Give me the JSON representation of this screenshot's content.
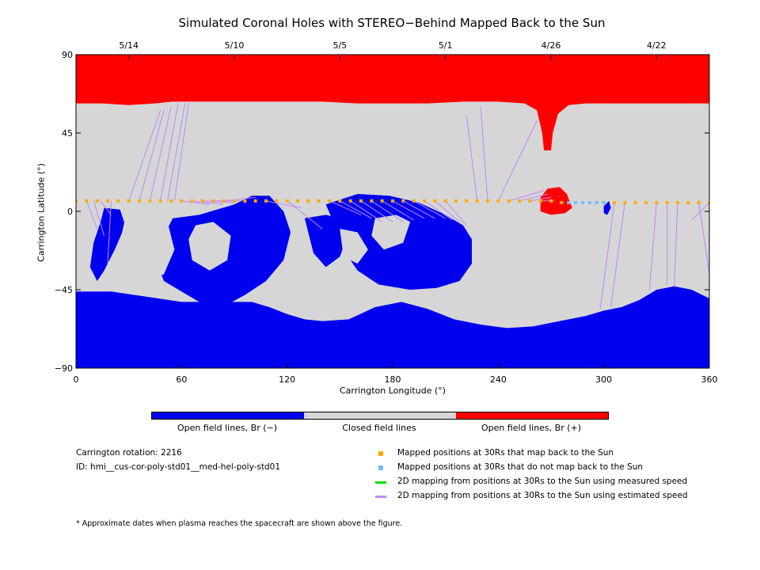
{
  "chart_data": {
    "type": "map",
    "title": "Simulated Coronal Holes with STEREO−Behind Mapped Back to the Sun",
    "xlabel": "Carrington Longitude (°)",
    "ylabel": "Carrington Latitude (°)",
    "xlim": [
      0,
      360
    ],
    "ylim": [
      -90,
      90
    ],
    "x_ticks": [
      0,
      60,
      120,
      180,
      240,
      300,
      360
    ],
    "y_ticks": [
      -90,
      -45,
      0,
      45,
      90
    ],
    "y_tick_labels": [
      "−90",
      "−45",
      "0",
      "45",
      "90"
    ],
    "top_date_ticks": [
      {
        "label": "5/14",
        "lon": 30
      },
      {
        "label": "5/10",
        "lon": 90
      },
      {
        "label": "5/5",
        "lon": 150
      },
      {
        "label": "5/1",
        "lon": 210
      },
      {
        "label": "4/26",
        "lon": 270
      },
      {
        "label": "4/22",
        "lon": 330
      }
    ],
    "colorbar": [
      {
        "label": "Open field lines, Br (−)",
        "color": "#0000ee"
      },
      {
        "label": "Closed field lines",
        "color": "#d6d6d6"
      },
      {
        "label": "Open field lines, Br (+)",
        "color": "#ff0000"
      }
    ],
    "north_boundary": [
      [
        0,
        62
      ],
      [
        15,
        62
      ],
      [
        30,
        61
      ],
      [
        45,
        62
      ],
      [
        55,
        63
      ],
      [
        65,
        63
      ],
      [
        80,
        63
      ],
      [
        100,
        63
      ],
      [
        120,
        63
      ],
      [
        140,
        63
      ],
      [
        160,
        62
      ],
      [
        180,
        62
      ],
      [
        200,
        62
      ],
      [
        220,
        63
      ],
      [
        240,
        63
      ],
      [
        255,
        62
      ],
      [
        262,
        58
      ],
      [
        265,
        45
      ],
      [
        266,
        35
      ],
      [
        270,
        35
      ],
      [
        271,
        45
      ],
      [
        274,
        56
      ],
      [
        280,
        61
      ],
      [
        290,
        62
      ],
      [
        310,
        62
      ],
      [
        330,
        62
      ],
      [
        345,
        62
      ],
      [
        360,
        62
      ]
    ],
    "south_boundary": [
      [
        0,
        -46
      ],
      [
        20,
        -46
      ],
      [
        40,
        -49
      ],
      [
        60,
        -52
      ],
      [
        80,
        -52
      ],
      [
        100,
        -52
      ],
      [
        110,
        -55
      ],
      [
        120,
        -59
      ],
      [
        130,
        -62
      ],
      [
        140,
        -63
      ],
      [
        155,
        -62
      ],
      [
        170,
        -55
      ],
      [
        185,
        -52
      ],
      [
        200,
        -56
      ],
      [
        215,
        -62
      ],
      [
        230,
        -65
      ],
      [
        245,
        -67
      ],
      [
        260,
        -66
      ],
      [
        270,
        -64
      ],
      [
        280,
        -62
      ],
      [
        290,
        -60
      ],
      [
        300,
        -57
      ],
      [
        310,
        -55
      ],
      [
        320,
        -51
      ],
      [
        330,
        -45
      ],
      [
        340,
        -43
      ],
      [
        350,
        -45
      ],
      [
        360,
        -50
      ]
    ],
    "red_patch": [
      [
        264,
        0
      ],
      [
        270,
        -2
      ],
      [
        278,
        -1
      ],
      [
        282,
        2
      ],
      [
        279,
        10
      ],
      [
        275,
        14
      ],
      [
        268,
        13
      ],
      [
        264,
        8
      ]
    ],
    "blue_patches": [
      [
        [
          16,
          2
        ],
        [
          25,
          1
        ],
        [
          28,
          -8
        ],
        [
          22,
          -22
        ],
        [
          16,
          -34
        ],
        [
          12,
          -40
        ],
        [
          8,
          -32
        ],
        [
          10,
          -18
        ],
        [
          14,
          -6
        ]
      ],
      [
        [
          55,
          -4
        ],
        [
          70,
          -2
        ],
        [
          90,
          4
        ],
        [
          100,
          9
        ],
        [
          110,
          9
        ],
        [
          118,
          0
        ],
        [
          122,
          -12
        ],
        [
          118,
          -28
        ],
        [
          108,
          -40
        ],
        [
          96,
          -48
        ],
        [
          85,
          -54
        ],
        [
          70,
          -52
        ],
        [
          60,
          -46
        ],
        [
          50,
          -40
        ],
        [
          45,
          -28
        ],
        [
          50,
          -14
        ]
      ],
      [
        [
          130,
          -4
        ],
        [
          142,
          -2
        ],
        [
          150,
          -4
        ],
        [
          155,
          -12
        ],
        [
          150,
          -26
        ],
        [
          142,
          -32
        ],
        [
          135,
          -24
        ],
        [
          132,
          -12
        ]
      ],
      [
        [
          142,
          4
        ],
        [
          160,
          10
        ],
        [
          178,
          9
        ],
        [
          195,
          5
        ],
        [
          210,
          -2
        ],
        [
          220,
          -8
        ],
        [
          225,
          -16
        ],
        [
          225,
          -30
        ],
        [
          218,
          -40
        ],
        [
          205,
          -44
        ],
        [
          190,
          -45
        ],
        [
          172,
          -42
        ],
        [
          160,
          -34
        ],
        [
          152,
          -22
        ],
        [
          148,
          -10
        ]
      ],
      [
        [
          300,
          3
        ],
        [
          303,
          6
        ],
        [
          304,
          2
        ],
        [
          302,
          -2
        ],
        [
          300,
          -1
        ]
      ]
    ],
    "grey_islands": [
      [
        [
          28,
          -4
        ],
        [
          40,
          -2
        ],
        [
          52,
          -6
        ],
        [
          56,
          -22
        ],
        [
          50,
          -36
        ],
        [
          38,
          -42
        ],
        [
          28,
          -36
        ],
        [
          24,
          -22
        ]
      ],
      [
        [
          68,
          -8
        ],
        [
          78,
          -6
        ],
        [
          88,
          -14
        ],
        [
          86,
          -28
        ],
        [
          76,
          -34
        ],
        [
          66,
          -28
        ],
        [
          64,
          -16
        ]
      ],
      [
        [
          150,
          -10
        ],
        [
          160,
          -12
        ],
        [
          166,
          -22
        ],
        [
          160,
          -30
        ],
        [
          152,
          -26
        ]
      ],
      [
        [
          170,
          -4
        ],
        [
          182,
          -2
        ],
        [
          190,
          -6
        ],
        [
          186,
          -18
        ],
        [
          175,
          -22
        ],
        [
          168,
          -14
        ]
      ]
    ],
    "mapped_points_back": [
      [
        0,
        6
      ],
      [
        6,
        6
      ],
      [
        12,
        6
      ],
      [
        18,
        6
      ],
      [
        24,
        6
      ],
      [
        30,
        6
      ],
      [
        36,
        6
      ],
      [
        42,
        6
      ],
      [
        48,
        6
      ],
      [
        54,
        6
      ],
      [
        60,
        6
      ],
      [
        66,
        6
      ],
      [
        72,
        6
      ],
      [
        78,
        6
      ],
      [
        84,
        6
      ],
      [
        90,
        6
      ],
      [
        96,
        6
      ],
      [
        102,
        6
      ],
      [
        108,
        6
      ],
      [
        114,
        6
      ],
      [
        120,
        6
      ],
      [
        126,
        6
      ],
      [
        132,
        6
      ],
      [
        138,
        6
      ],
      [
        144,
        6
      ],
      [
        150,
        6
      ],
      [
        156,
        6
      ],
      [
        162,
        6
      ],
      [
        168,
        6
      ],
      [
        174,
        6
      ],
      [
        180,
        6
      ],
      [
        186,
        6
      ],
      [
        192,
        6
      ],
      [
        198,
        6
      ],
      [
        204,
        6
      ],
      [
        210,
        6
      ],
      [
        216,
        6
      ],
      [
        222,
        6
      ],
      [
        228,
        6
      ],
      [
        234,
        6
      ],
      [
        240,
        6
      ],
      [
        246,
        6
      ],
      [
        252,
        6
      ],
      [
        258,
        6
      ],
      [
        264,
        6
      ],
      [
        270,
        6
      ],
      [
        276,
        5
      ],
      [
        306,
        5
      ],
      [
        312,
        5
      ],
      [
        318,
        5
      ],
      [
        324,
        5
      ],
      [
        330,
        5
      ],
      [
        336,
        5
      ],
      [
        342,
        5
      ],
      [
        348,
        5
      ],
      [
        354,
        5
      ],
      [
        360,
        5
      ]
    ],
    "mapped_points_noback": [
      [
        280,
        5
      ],
      [
        284,
        5
      ],
      [
        288,
        5
      ],
      [
        292,
        5
      ],
      [
        296,
        5
      ],
      [
        300,
        5
      ]
    ],
    "est_lines": [
      [
        [
          0,
          6
        ],
        [
          -2,
          -38
        ]
      ],
      [
        [
          6,
          6
        ],
        [
          12,
          -10
        ]
      ],
      [
        [
          10,
          6
        ],
        [
          16,
          -14
        ]
      ],
      [
        [
          14,
          6
        ],
        [
          20,
          -2
        ]
      ],
      [
        [
          20,
          6
        ],
        [
          18,
          -30
        ]
      ],
      [
        [
          30,
          6
        ],
        [
          48,
          58
        ]
      ],
      [
        [
          36,
          6
        ],
        [
          50,
          58
        ]
      ],
      [
        [
          42,
          6
        ],
        [
          54,
          60
        ]
      ],
      [
        [
          48,
          6
        ],
        [
          58,
          62
        ]
      ],
      [
        [
          52,
          6
        ],
        [
          62,
          62
        ]
      ],
      [
        [
          56,
          6
        ],
        [
          64,
          62
        ]
      ],
      [
        [
          60,
          6
        ],
        [
          76,
          4
        ]
      ],
      [
        [
          66,
          6
        ],
        [
          84,
          4
        ]
      ],
      [
        [
          72,
          6
        ],
        [
          90,
          5
        ]
      ],
      [
        [
          78,
          6
        ],
        [
          94,
          6
        ]
      ],
      [
        [
          84,
          6
        ],
        [
          102,
          8
        ]
      ],
      [
        [
          108,
          6
        ],
        [
          128,
          2
        ]
      ],
      [
        [
          120,
          6
        ],
        [
          140,
          -10
        ]
      ],
      [
        [
          144,
          6
        ],
        [
          162,
          -2
        ]
      ],
      [
        [
          150,
          6
        ],
        [
          168,
          -4
        ]
      ],
      [
        [
          156,
          6
        ],
        [
          174,
          -6
        ]
      ],
      [
        [
          162,
          6
        ],
        [
          180,
          -6
        ]
      ],
      [
        [
          168,
          6
        ],
        [
          186,
          -6
        ]
      ],
      [
        [
          174,
          6
        ],
        [
          192,
          -5
        ]
      ],
      [
        [
          180,
          6
        ],
        [
          198,
          -4
        ]
      ],
      [
        [
          186,
          6
        ],
        [
          204,
          -4
        ]
      ],
      [
        [
          192,
          6
        ],
        [
          210,
          -4
        ]
      ],
      [
        [
          198,
          6
        ],
        [
          214,
          -5
        ]
      ],
      [
        [
          204,
          6
        ],
        [
          218,
          -6
        ]
      ],
      [
        [
          210,
          6
        ],
        [
          222,
          -8
        ]
      ],
      [
        [
          228,
          6
        ],
        [
          222,
          55
        ]
      ],
      [
        [
          234,
          6
        ],
        [
          230,
          60
        ]
      ],
      [
        [
          240,
          6
        ],
        [
          262,
          52
        ]
      ],
      [
        [
          246,
          6
        ],
        [
          266,
          12
        ]
      ],
      [
        [
          252,
          6
        ],
        [
          268,
          10
        ]
      ],
      [
        [
          258,
          6
        ],
        [
          270,
          8
        ]
      ],
      [
        [
          264,
          6
        ],
        [
          272,
          6
        ]
      ],
      [
        [
          306,
          5
        ],
        [
          298,
          -56
        ]
      ],
      [
        [
          312,
          5
        ],
        [
          304,
          -55
        ]
      ],
      [
        [
          330,
          5
        ],
        [
          326,
          -45
        ]
      ],
      [
        [
          336,
          5
        ],
        [
          336,
          -42
        ]
      ],
      [
        [
          342,
          5
        ],
        [
          340,
          -43
        ]
      ],
      [
        [
          354,
          5
        ],
        [
          360,
          -36
        ]
      ],
      [
        [
          360,
          5
        ],
        [
          350,
          -5
        ]
      ]
    ]
  },
  "info": {
    "rotation": "Carrington rotation: 2216",
    "id": "ID: hmi__cus-cor-poly-std01__med-hel-poly-std01",
    "footnote": "* Approximate dates when plasma reaches the spacecraft are shown above the figure."
  },
  "legend": [
    {
      "kind": "square",
      "color": "#ffaa00",
      "label": "Mapped positions at 30Rs that map back to the Sun"
    },
    {
      "kind": "square",
      "color": "#77bbff",
      "label": "Mapped positions at 30Rs that do not map back to the Sun"
    },
    {
      "kind": "line",
      "color": "#00dd00",
      "label": "2D mapping from positions at 30Rs to the Sun using measured speed"
    },
    {
      "kind": "line",
      "color": "#bb88ff",
      "label": "2D mapping from positions at 30Rs to the Sun using estimated speed"
    }
  ]
}
